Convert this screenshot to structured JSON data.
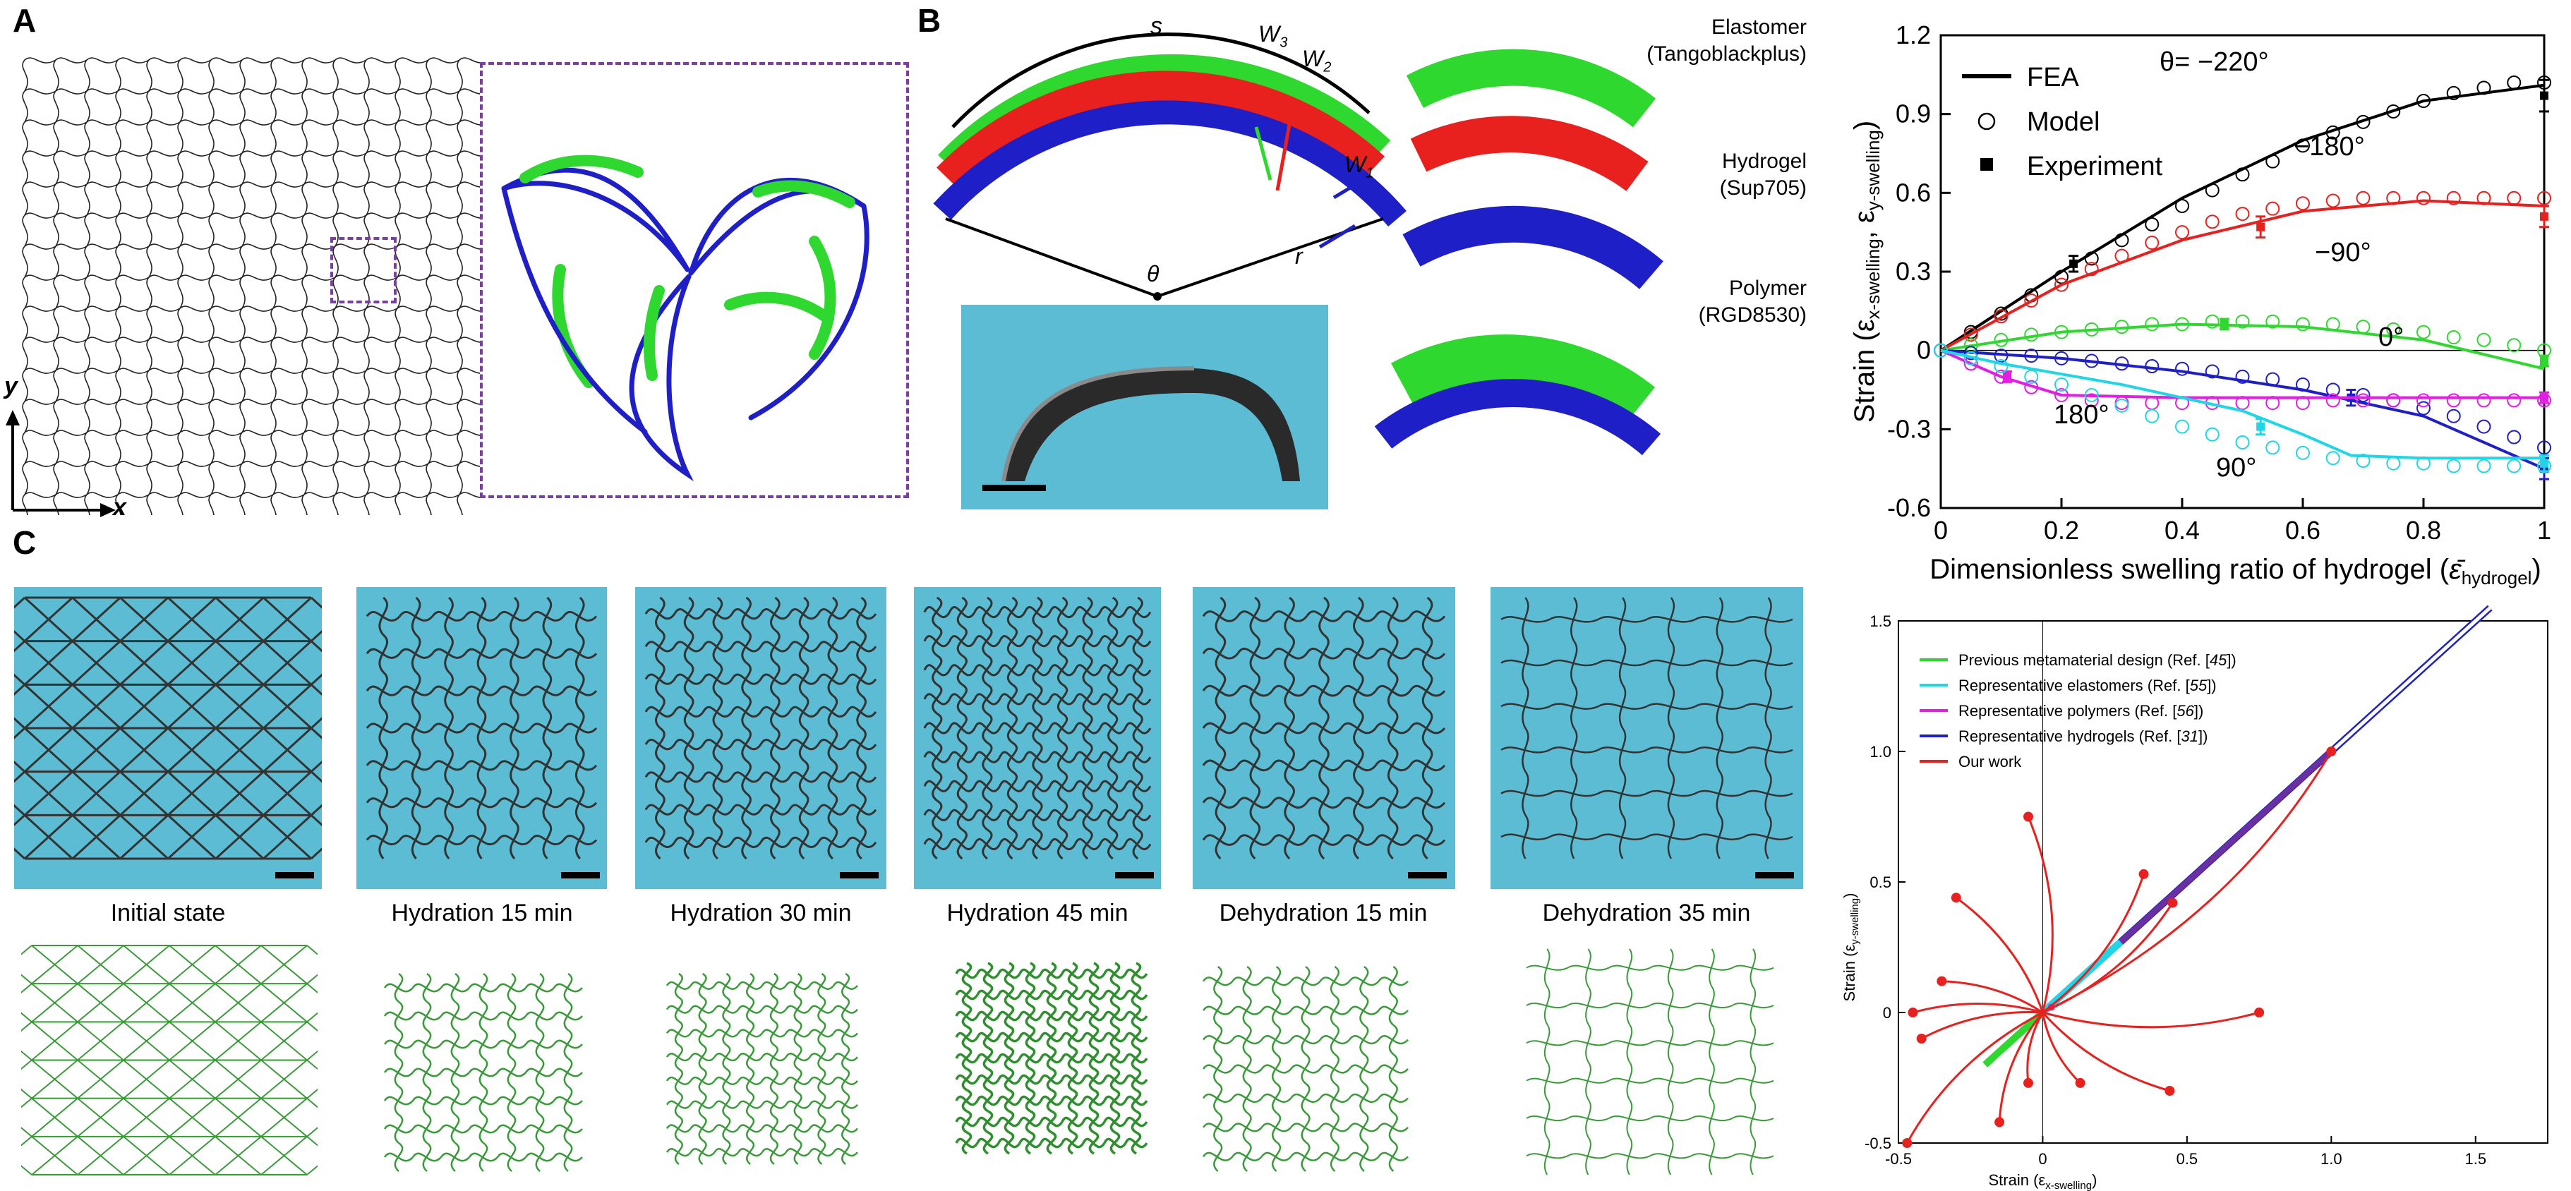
{
  "panels": {
    "a": "A",
    "b": "B",
    "c": "C"
  },
  "panel_a": {
    "axis_y": "y",
    "axis_x": "x",
    "colors": {
      "lattice": "#000000",
      "dashed_box": "#7b3fa0",
      "elastomer": "#2fd82f",
      "polymer": "#1f1fc8"
    }
  },
  "panel_b": {
    "arc_labels": {
      "s": "s",
      "w3": "W",
      "w3_sub": "3",
      "w2": "W",
      "w2_sub": "2",
      "w1": "W",
      "w1_sub": "1",
      "theta": "θ",
      "r": "r"
    },
    "materials": [
      {
        "name": "Elastomer",
        "detail": "(Tangoblackplus)",
        "color": "#2fd82f"
      },
      {
        "name": "Hydrogel",
        "detail": "(Sup705)",
        "color": "#e8201e"
      },
      {
        "name": "Polymer",
        "detail": "(RGD8530)",
        "color": "#1f1fc8"
      }
    ]
  },
  "panel_c": {
    "stages": [
      {
        "label": "Initial state"
      },
      {
        "label": "Hydration 15 min"
      },
      {
        "label": "Hydration 30 min"
      },
      {
        "label": "Hydration 45 min"
      },
      {
        "label": "Dehydration 15 min"
      },
      {
        "label": "Dehydration 35 min"
      }
    ]
  },
  "chart_data": [
    {
      "type": "line",
      "xlabel": "Dimensionless swelling ratio of hydrogel (",
      "xlabel_symbol": "ε̄",
      "xlabel_sub": "hydrogel",
      "xlabel_close": ")",
      "ylabel": "Strain (ε",
      "ylabel_sub1": "x-swelling",
      "ylabel_mid": ", ε",
      "ylabel_sub2": "y-swelling",
      "ylabel_close": ")",
      "xlim": [
        0,
        1.0
      ],
      "ylim": [
        -0.6,
        1.2
      ],
      "xticks": [
        "0",
        "0.2",
        "0.4",
        "0.6",
        "0.8",
        "1"
      ],
      "yticks": [
        "-0.6",
        "-0.3",
        "0",
        "0.3",
        "0.6",
        "0.9",
        "1.2"
      ],
      "legend": [
        "FEA",
        "Model",
        "Experiment"
      ],
      "legend_position": "top-left",
      "series": [
        {
          "name": "θ= −220°",
          "color": "#000000",
          "fea": [
            [
              0,
              0
            ],
            [
              0.2,
              0.3
            ],
            [
              0.4,
              0.58
            ],
            [
              0.6,
              0.8
            ],
            [
              0.8,
              0.95
            ],
            [
              1.0,
              1.01
            ]
          ],
          "model": [
            [
              0,
              0
            ],
            [
              0.05,
              0.07
            ],
            [
              0.1,
              0.14
            ],
            [
              0.15,
              0.21
            ],
            [
              0.2,
              0.28
            ],
            [
              0.25,
              0.35
            ],
            [
              0.3,
              0.42
            ],
            [
              0.35,
              0.48
            ],
            [
              0.4,
              0.55
            ],
            [
              0.45,
              0.61
            ],
            [
              0.5,
              0.67
            ],
            [
              0.55,
              0.72
            ],
            [
              0.6,
              0.78
            ],
            [
              0.65,
              0.83
            ],
            [
              0.7,
              0.87
            ],
            [
              0.75,
              0.91
            ],
            [
              0.8,
              0.95
            ],
            [
              0.85,
              0.98
            ],
            [
              0.9,
              1.0
            ],
            [
              0.95,
              1.02
            ],
            [
              1.0,
              1.02
            ]
          ],
          "experiment": [
            [
              0.22,
              0.33,
              0.03
            ],
            [
              1.0,
              0.97,
              0.06
            ]
          ]
        },
        {
          "name": "−180°",
          "color": "#e8201e",
          "fea": [
            [
              0,
              0
            ],
            [
              0.2,
              0.25
            ],
            [
              0.4,
              0.42
            ],
            [
              0.6,
              0.53
            ],
            [
              0.8,
              0.57
            ],
            [
              1.0,
              0.55
            ]
          ],
          "model": [
            [
              0,
              0
            ],
            [
              0.05,
              0.06
            ],
            [
              0.1,
              0.13
            ],
            [
              0.15,
              0.19
            ],
            [
              0.2,
              0.25
            ],
            [
              0.25,
              0.31
            ],
            [
              0.3,
              0.36
            ],
            [
              0.35,
              0.41
            ],
            [
              0.4,
              0.45
            ],
            [
              0.45,
              0.49
            ],
            [
              0.5,
              0.52
            ],
            [
              0.55,
              0.54
            ],
            [
              0.6,
              0.56
            ],
            [
              0.65,
              0.57
            ],
            [
              0.7,
              0.58
            ],
            [
              0.75,
              0.58
            ],
            [
              0.8,
              0.58
            ],
            [
              0.85,
              0.58
            ],
            [
              0.9,
              0.58
            ],
            [
              0.95,
              0.58
            ],
            [
              1.0,
              0.58
            ]
          ],
          "experiment": [
            [
              0.53,
              0.47,
              0.04
            ],
            [
              1.0,
              0.51,
              0.04
            ]
          ]
        },
        {
          "name": "−90°",
          "color": "#2fd82f",
          "fea": [
            [
              0,
              0
            ],
            [
              0.2,
              0.07
            ],
            [
              0.4,
              0.1
            ],
            [
              0.6,
              0.09
            ],
            [
              0.8,
              0.04
            ],
            [
              1.0,
              -0.07
            ]
          ],
          "model": [
            [
              0,
              0
            ],
            [
              0.05,
              0.02
            ],
            [
              0.1,
              0.04
            ],
            [
              0.15,
              0.06
            ],
            [
              0.2,
              0.07
            ],
            [
              0.25,
              0.08
            ],
            [
              0.3,
              0.09
            ],
            [
              0.35,
              0.1
            ],
            [
              0.4,
              0.1
            ],
            [
              0.45,
              0.11
            ],
            [
              0.5,
              0.11
            ],
            [
              0.55,
              0.11
            ],
            [
              0.6,
              0.1
            ],
            [
              0.65,
              0.1
            ],
            [
              0.7,
              0.09
            ],
            [
              0.75,
              0.08
            ],
            [
              0.8,
              0.07
            ],
            [
              0.85,
              0.05
            ],
            [
              0.9,
              0.04
            ],
            [
              0.95,
              0.02
            ],
            [
              1.0,
              0.0
            ]
          ],
          "experiment": [
            [
              0.47,
              0.1,
              0.02
            ],
            [
              1.0,
              -0.04,
              0.02
            ]
          ]
        },
        {
          "name": "0°",
          "color": "#1f1fc8",
          "fea": [
            [
              0,
              0
            ],
            [
              0.2,
              -0.03
            ],
            [
              0.4,
              -0.08
            ],
            [
              0.6,
              -0.15
            ],
            [
              0.8,
              -0.25
            ],
            [
              1.0,
              -0.45
            ]
          ],
          "model": [
            [
              0,
              0
            ],
            [
              0.05,
              -0.01
            ],
            [
              0.1,
              -0.02
            ],
            [
              0.15,
              -0.02
            ],
            [
              0.2,
              -0.03
            ],
            [
              0.25,
              -0.04
            ],
            [
              0.3,
              -0.05
            ],
            [
              0.35,
              -0.06
            ],
            [
              0.4,
              -0.07
            ],
            [
              0.45,
              -0.08
            ],
            [
              0.5,
              -0.1
            ],
            [
              0.55,
              -0.11
            ],
            [
              0.6,
              -0.13
            ],
            [
              0.65,
              -0.15
            ],
            [
              0.7,
              -0.17
            ],
            [
              0.75,
              -0.19
            ],
            [
              0.8,
              -0.22
            ],
            [
              0.85,
              -0.25
            ],
            [
              0.9,
              -0.29
            ],
            [
              0.95,
              -0.33
            ],
            [
              1.0,
              -0.37
            ]
          ],
          "experiment": [
            [
              0.68,
              -0.18,
              0.03
            ],
            [
              1.0,
              -0.45,
              0.04
            ]
          ]
        },
        {
          "name": "180°",
          "color": "#e21ee2",
          "fea": [
            [
              0,
              0
            ],
            [
              0.1,
              -0.1
            ],
            [
              0.2,
              -0.17
            ],
            [
              0.4,
              -0.18
            ],
            [
              0.6,
              -0.18
            ],
            [
              0.8,
              -0.18
            ],
            [
              1.0,
              -0.18
            ]
          ],
          "model": [
            [
              0,
              0
            ],
            [
              0.05,
              -0.05
            ],
            [
              0.1,
              -0.1
            ],
            [
              0.15,
              -0.14
            ],
            [
              0.2,
              -0.17
            ],
            [
              0.25,
              -0.19
            ],
            [
              0.3,
              -0.2
            ],
            [
              0.35,
              -0.2
            ],
            [
              0.4,
              -0.2
            ],
            [
              0.45,
              -0.2
            ],
            [
              0.5,
              -0.2
            ],
            [
              0.55,
              -0.2
            ],
            [
              0.6,
              -0.2
            ],
            [
              0.65,
              -0.19
            ],
            [
              0.7,
              -0.19
            ],
            [
              0.75,
              -0.19
            ],
            [
              0.8,
              -0.19
            ],
            [
              0.85,
              -0.19
            ],
            [
              0.9,
              -0.19
            ],
            [
              0.95,
              -0.19
            ],
            [
              1.0,
              -0.19
            ]
          ],
          "experiment": [
            [
              0.11,
              -0.1,
              0.02
            ],
            [
              1.0,
              -0.18,
              0.02
            ]
          ]
        },
        {
          "name": "90°",
          "color": "#1fd6e6",
          "fea": [
            [
              0,
              0
            ],
            [
              0.1,
              -0.05
            ],
            [
              0.2,
              -0.09
            ],
            [
              0.3,
              -0.13
            ],
            [
              0.4,
              -0.18
            ],
            [
              0.5,
              -0.23
            ],
            [
              0.6,
              -0.32
            ],
            [
              0.68,
              -0.4
            ],
            [
              0.8,
              -0.41
            ],
            [
              1.0,
              -0.41
            ]
          ],
          "model": [
            [
              0,
              0
            ],
            [
              0.05,
              -0.03
            ],
            [
              0.1,
              -0.06
            ],
            [
              0.15,
              -0.1
            ],
            [
              0.2,
              -0.13
            ],
            [
              0.25,
              -0.17
            ],
            [
              0.3,
              -0.21
            ],
            [
              0.35,
              -0.25
            ],
            [
              0.4,
              -0.29
            ],
            [
              0.45,
              -0.32
            ],
            [
              0.5,
              -0.35
            ],
            [
              0.55,
              -0.37
            ],
            [
              0.6,
              -0.39
            ],
            [
              0.65,
              -0.41
            ],
            [
              0.7,
              -0.42
            ],
            [
              0.75,
              -0.43
            ],
            [
              0.8,
              -0.43
            ],
            [
              0.85,
              -0.44
            ],
            [
              0.9,
              -0.44
            ],
            [
              0.95,
              -0.44
            ],
            [
              1.0,
              -0.44
            ]
          ],
          "experiment": [
            [
              0.53,
              -0.29,
              0.03
            ],
            [
              1.0,
              -0.43,
              0.03
            ]
          ]
        }
      ]
    },
    {
      "type": "line",
      "xlabel": "Strain (ε",
      "xlabel_sub": "x-swelling",
      "xlabel_close": ")",
      "ylabel": "Strain (ε",
      "ylabel_sub": "y-swelling",
      "ylabel_close": ")",
      "xlim": [
        -0.5,
        1.75
      ],
      "ylim": [
        -0.5,
        1.5
      ],
      "xticks": [
        "-0.5",
        "0",
        "0.5",
        "1.0",
        "1.5"
      ],
      "yticks": [
        "-0.5",
        "0",
        "0.5",
        "1.0",
        "1.5"
      ],
      "legend_position": "top-left",
      "legend": [
        {
          "text": "Previous metamaterial design (Ref. [",
          "ref": "45",
          "close": "])",
          "color": "#2fd82f"
        },
        {
          "text": "Representative elastomers (Ref. [",
          "ref": "55",
          "close": "])",
          "color": "#1fd6e6"
        },
        {
          "text": "Representative polymers (Ref. [",
          "ref": "56",
          "close": "])",
          "color": "#e21ee2"
        },
        {
          "text": "Representative hydrogels (Ref. [",
          "ref": "31",
          "close": "])",
          "color": "#1f1fc8"
        },
        {
          "text": "Our work",
          "ref": "",
          "close": "",
          "color": "#e8201e"
        }
      ],
      "our_work_endpoints": [
        [
          -0.05,
          0.75
        ],
        [
          0.35,
          0.53
        ],
        [
          0.45,
          0.42
        ],
        [
          -0.3,
          0.44
        ],
        [
          -0.35,
          0.12
        ],
        [
          -0.45,
          0.0
        ],
        [
          -0.42,
          -0.1
        ],
        [
          0.75,
          0.0
        ],
        [
          -0.05,
          -0.27
        ],
        [
          0.13,
          -0.27
        ],
        [
          0.44,
          -0.3
        ],
        [
          -0.15,
          -0.42
        ],
        [
          -0.47,
          -0.5
        ],
        [
          1.0,
          1.0
        ]
      ]
    }
  ]
}
